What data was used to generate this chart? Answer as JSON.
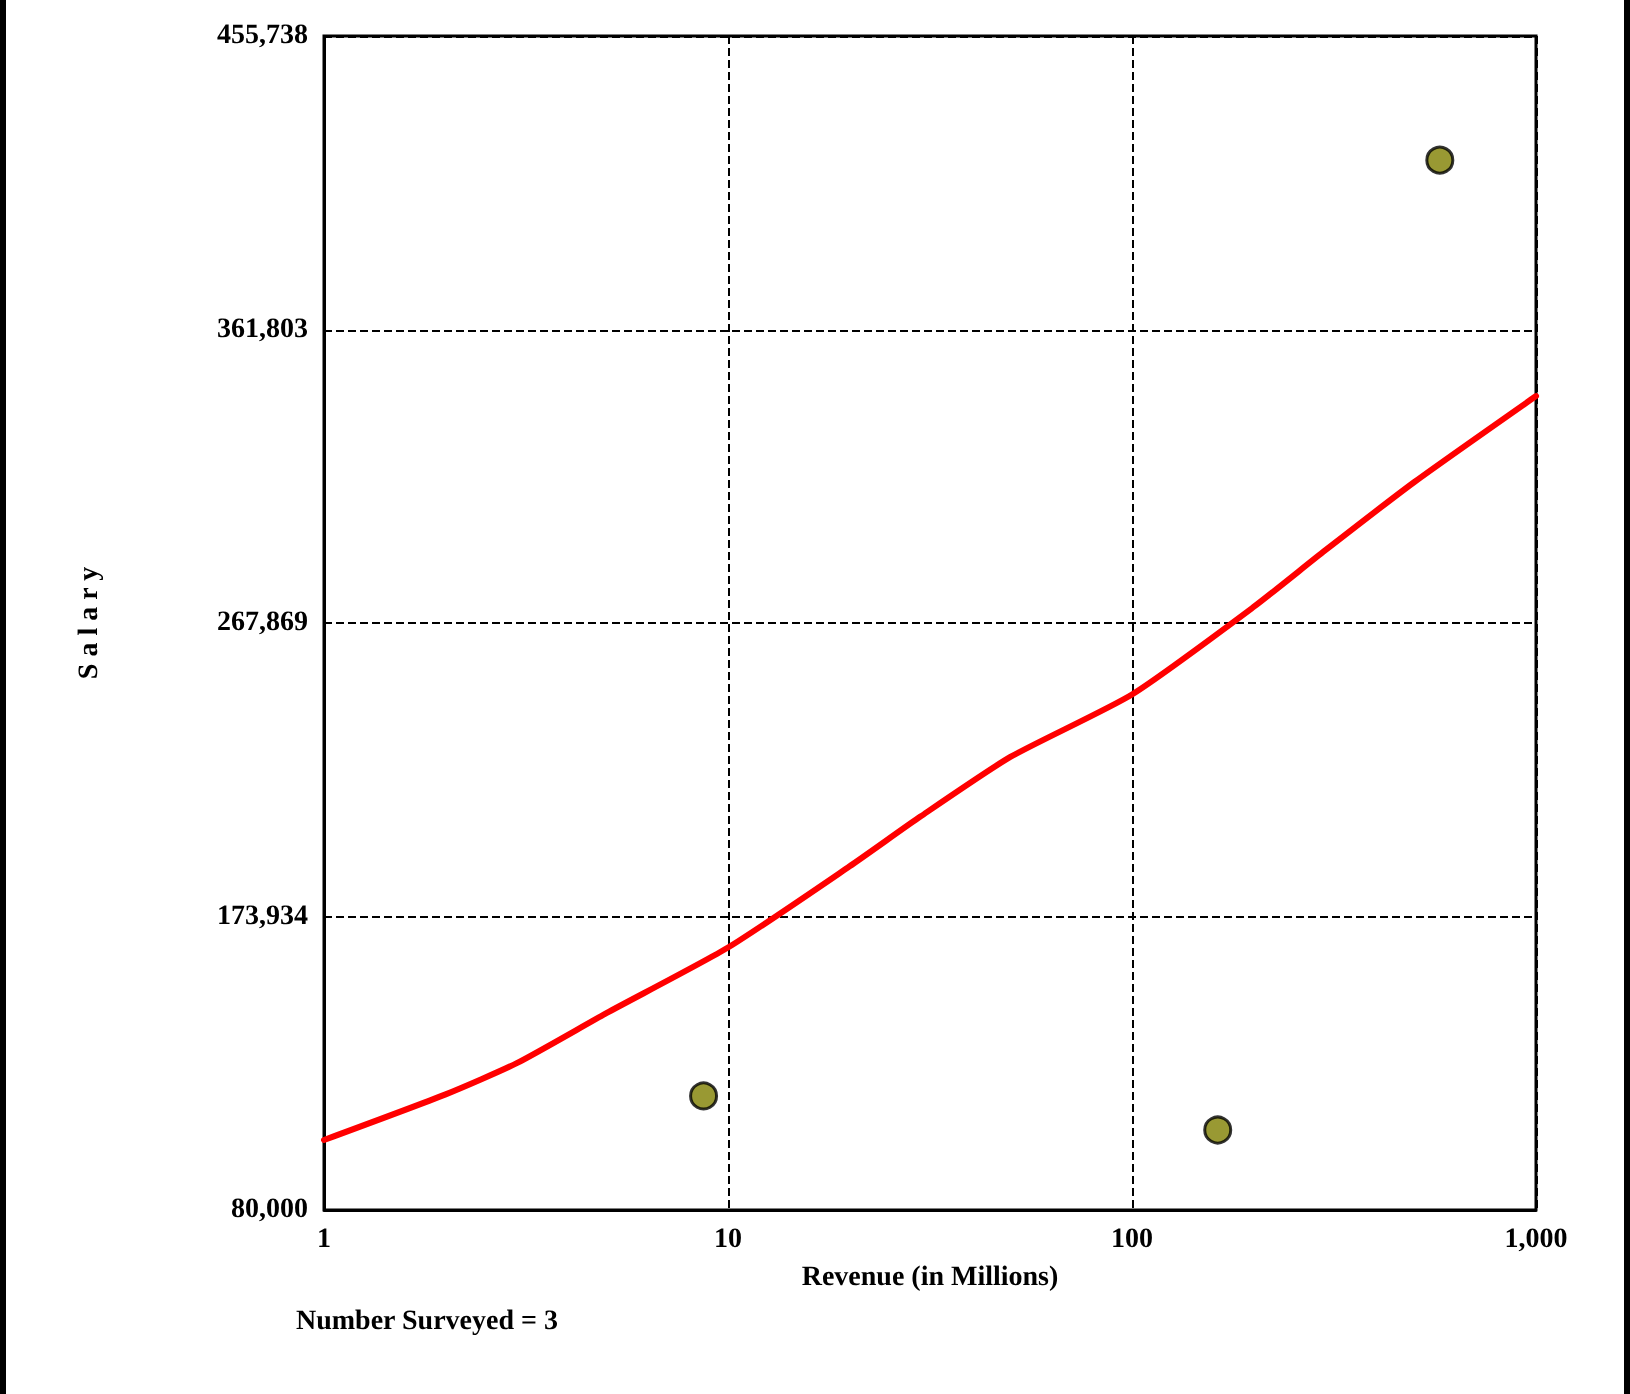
{
  "chart_data": {
    "type": "scatter",
    "xlabel": "Revenue (in Millions)",
    "ylabel": "S a l a r y",
    "annotations": [
      "Number Surveyed = 3"
    ],
    "log": "x",
    "grid": true,
    "marker": "circle",
    "xlim": [
      1,
      1000
    ],
    "xticks": [
      1,
      10,
      100,
      {
        "value": 1000,
        "label": "1,000"
      }
    ],
    "ylim": [
      80000,
      455738
    ],
    "yticks": [
      {
        "value": 80000,
        "label": "80,000"
      },
      {
        "value": 173934,
        "label": "173,934"
      },
      {
        "value": 267869,
        "label": "267,869"
      },
      {
        "value": 361803,
        "label": "361,803"
      },
      {
        "value": 455738,
        "label": "455,738"
      }
    ],
    "series": [
      {
        "color": "#808000",
        "x": [
          8.7,
          163,
          578
        ],
        "values": [
          116500,
          105600,
          416000
        ]
      },
      {
        "type": "line",
        "color": "#ff0000",
        "marker": "none",
        "line_style": "solid",
        "x": [
          1,
          2,
          3,
          5,
          10,
          20,
          30,
          50,
          100,
          200,
          300,
          500,
          1000
        ],
        "values": [
          102400,
          117000,
          127000,
          143000,
          164000,
          190000,
          206000,
          225000,
          245000,
          273000,
          291000,
          313000,
          340500
        ]
      }
    ]
  }
}
